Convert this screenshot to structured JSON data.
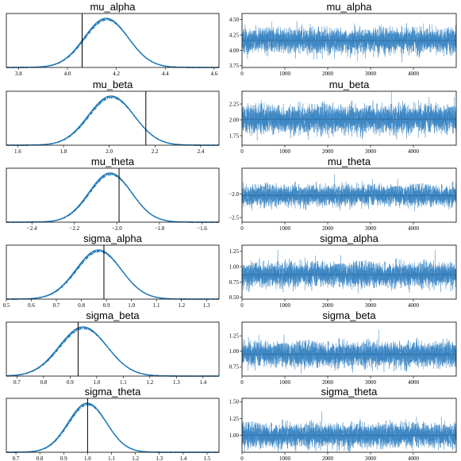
{
  "figure": {
    "accent": "#1f77b4",
    "trace_color": "#3b86c4"
  },
  "chart_data": [
    {
      "panel": "density",
      "type": "line",
      "title": "mu_alpha",
      "xlim": [
        3.75,
        4.62
      ],
      "xticks": [
        "3.8",
        "4.0",
        "4.2",
        "4.4",
        "4.6"
      ],
      "xtick_values": [
        3.8,
        4.0,
        4.2,
        4.4,
        4.6
      ],
      "mean": 4.16,
      "sd": 0.09,
      "ref_line": 4.06,
      "series": [
        {
          "style": "solid"
        },
        {
          "style": "dashed"
        },
        {
          "style": "dotted"
        },
        {
          "style": "dashdot"
        }
      ]
    },
    {
      "panel": "trace",
      "type": "line",
      "title": "mu_alpha",
      "xlim": [
        0,
        5000
      ],
      "xticks": [
        "0",
        "1000",
        "2000",
        "3000",
        "4000"
      ],
      "xtick_values": [
        0,
        1000,
        2000,
        3000,
        4000
      ],
      "ylim": [
        3.72,
        4.6
      ],
      "yticks": [
        "3.75",
        "4.00",
        "4.25",
        "4.50"
      ],
      "ytick_values": [
        3.75,
        4.0,
        4.25,
        4.5
      ],
      "mean": 4.16,
      "sd": 0.09,
      "draws": 5000
    },
    {
      "panel": "density",
      "type": "line",
      "title": "mu_beta",
      "xlim": [
        1.55,
        2.48
      ],
      "xticks": [
        "1.6",
        "1.8",
        "2.0",
        "2.2",
        "2.4"
      ],
      "xtick_values": [
        1.6,
        1.8,
        2.0,
        2.2,
        2.4
      ],
      "mean": 2.01,
      "sd": 0.1,
      "ref_line": 2.16,
      "series": [
        {
          "style": "solid"
        },
        {
          "style": "dashed"
        },
        {
          "style": "dotted"
        },
        {
          "style": "dashdot"
        }
      ]
    },
    {
      "panel": "trace",
      "type": "line",
      "title": "mu_beta",
      "xlim": [
        0,
        5000
      ],
      "xticks": [
        "0",
        "1000",
        "2000",
        "3000",
        "4000"
      ],
      "xtick_values": [
        0,
        1000,
        2000,
        3000,
        4000
      ],
      "ylim": [
        1.6,
        2.45
      ],
      "yticks": [
        "1.75",
        "2.00",
        "2.25"
      ],
      "ytick_values": [
        1.75,
        2.0,
        2.25
      ],
      "mean": 2.01,
      "sd": 0.1,
      "draws": 5000
    },
    {
      "panel": "density",
      "type": "line",
      "title": "mu_theta",
      "xlim": [
        -2.52,
        -1.52
      ],
      "xticks": [
        "−2.4",
        "−2.2",
        "−2.0",
        "−1.8",
        "−1.6"
      ],
      "xtick_values": [
        -2.4,
        -2.2,
        -2.0,
        -1.8,
        -1.6
      ],
      "mean": -2.03,
      "sd": 0.1,
      "ref_line": -1.99,
      "series": [
        {
          "style": "solid"
        },
        {
          "style": "dashed"
        },
        {
          "style": "dotted"
        },
        {
          "style": "dashdot"
        }
      ]
    },
    {
      "panel": "trace",
      "type": "line",
      "title": "mu_theta",
      "xlim": [
        0,
        5000
      ],
      "xticks": [
        "0",
        "1000",
        "2000",
        "3000",
        "4000"
      ],
      "xtick_values": [
        0,
        1000,
        2000,
        3000,
        4000
      ],
      "ylim": [
        -2.6,
        -1.45
      ],
      "yticks": [
        "−2.0",
        "−2.5"
      ],
      "ytick_values": [
        -2.0,
        -2.5
      ],
      "mean": -2.03,
      "sd": 0.1,
      "draws": 5000
    },
    {
      "panel": "density",
      "type": "line",
      "title": "sigma_alpha",
      "xlim": [
        0.5,
        1.35
      ],
      "xticks": [
        "0.5",
        "0.6",
        "0.7",
        "0.8",
        "0.9",
        "1.0",
        "1.1",
        "1.2",
        "1.3"
      ],
      "xtick_values": [
        0.5,
        0.6,
        0.7,
        0.8,
        0.9,
        1.0,
        1.1,
        1.2,
        1.3
      ],
      "mean": 0.87,
      "sd": 0.09,
      "ref_line": 0.89,
      "series": [
        {
          "style": "solid"
        },
        {
          "style": "dashed"
        },
        {
          "style": "dotted"
        },
        {
          "style": "dashdot"
        }
      ]
    },
    {
      "panel": "trace",
      "type": "line",
      "title": "sigma_alpha",
      "xlim": [
        0,
        5000
      ],
      "xticks": [
        "0",
        "1000",
        "2000",
        "3000",
        "4000"
      ],
      "xtick_values": [
        0,
        1000,
        2000,
        3000,
        4000
      ],
      "ylim": [
        0.47,
        1.35
      ],
      "yticks": [
        "0.50",
        "0.75",
        "1.00",
        "1.25"
      ],
      "ytick_values": [
        0.5,
        0.75,
        1.0,
        1.25
      ],
      "mean": 0.87,
      "sd": 0.09,
      "draws": 5000
    },
    {
      "panel": "density",
      "type": "line",
      "title": "sigma_beta",
      "xlim": [
        0.66,
        1.46
      ],
      "xticks": [
        "0.7",
        "0.8",
        "0.9",
        "1.0",
        "1.1",
        "1.2",
        "1.3",
        "1.4"
      ],
      "xtick_values": [
        0.7,
        0.8,
        0.9,
        1.0,
        1.1,
        1.2,
        1.3,
        1.4
      ],
      "mean": 0.95,
      "sd": 0.09,
      "ref_line": 0.93,
      "series": [
        {
          "style": "solid"
        },
        {
          "style": "dashed"
        },
        {
          "style": "dotted"
        },
        {
          "style": "dashdot"
        }
      ]
    },
    {
      "panel": "trace",
      "type": "line",
      "title": "sigma_beta",
      "xlim": [
        0,
        5000
      ],
      "xticks": [
        "0",
        "1000",
        "2000",
        "3000",
        "4000"
      ],
      "xtick_values": [
        0,
        1000,
        2000,
        3000,
        4000
      ],
      "ylim": [
        0.6,
        1.47
      ],
      "yticks": [
        "0.75",
        "1.00",
        "1.25"
      ],
      "ytick_values": [
        0.75,
        1.0,
        1.25
      ],
      "mean": 0.95,
      "sd": 0.09,
      "draws": 5000
    },
    {
      "panel": "density",
      "type": "line",
      "title": "sigma_theta",
      "xlim": [
        0.66,
        1.55
      ],
      "xticks": [
        "0.7",
        "0.8",
        "0.9",
        "1.0",
        "1.1",
        "1.2",
        "1.3",
        "1.4",
        "1.5"
      ],
      "xtick_values": [
        0.7,
        0.8,
        0.9,
        1.0,
        1.1,
        1.2,
        1.3,
        1.4,
        1.5
      ],
      "mean": 1.0,
      "sd": 0.08,
      "ref_line": 1.0,
      "series": [
        {
          "style": "solid"
        },
        {
          "style": "dashed"
        },
        {
          "style": "dotted"
        },
        {
          "style": "dashdot"
        }
      ]
    },
    {
      "panel": "trace",
      "type": "line",
      "title": "sigma_theta",
      "xlim": [
        0,
        5000
      ],
      "xticks": [
        "0",
        "1000",
        "2000",
        "3000",
        "4000"
      ],
      "xtick_values": [
        0,
        1000,
        2000,
        3000,
        4000
      ],
      "ylim": [
        0.75,
        1.55
      ],
      "yticks": [
        "1.00",
        "1.25",
        "1.50"
      ],
      "ytick_values": [
        1.0,
        1.25,
        1.5
      ],
      "mean": 1.0,
      "sd": 0.08,
      "draws": 5000
    }
  ]
}
